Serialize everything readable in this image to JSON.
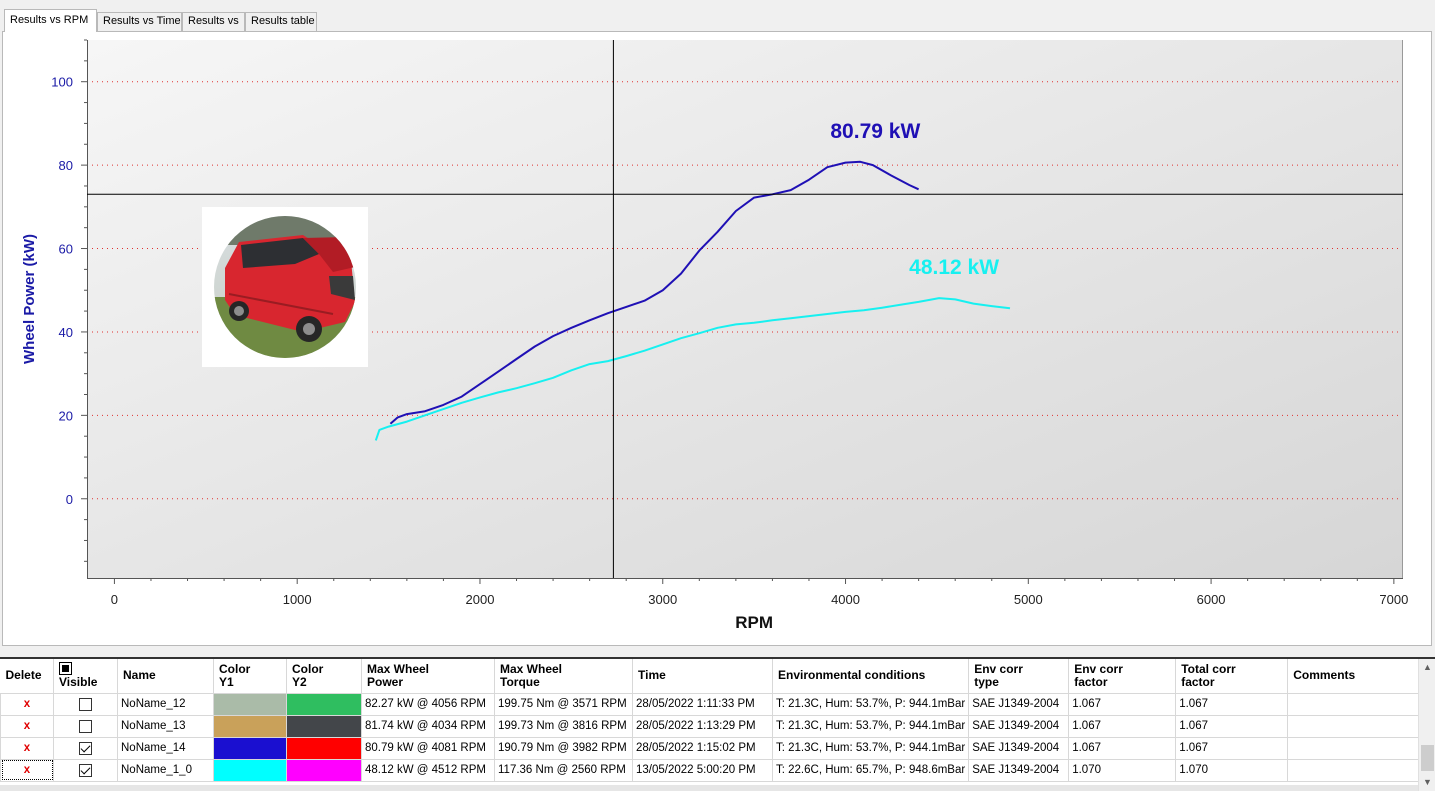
{
  "tabs": [
    "Results vs RPM",
    "Results vs Time",
    "Results vs",
    "Results table"
  ],
  "active_tab": 0,
  "chart_data": {
    "type": "line",
    "xlabel": "RPM",
    "ylabel": "Wheel Power (kW)",
    "xlim": [
      -150,
      7050
    ],
    "ylim": [
      -19,
      110
    ],
    "xticks": [
      0,
      1000,
      2000,
      3000,
      4000,
      5000,
      6000,
      7000
    ],
    "yticks": [
      0,
      20,
      40,
      60,
      80,
      100
    ],
    "grid": "horizontal dotted",
    "crosshair": {
      "x": 2730,
      "y": 73
    },
    "series": [
      {
        "name": "NoName_14",
        "color": "#1f10b5",
        "peak_label": "80.79 kW",
        "x": [
          1510,
          1550,
          1600,
          1700,
          1800,
          1900,
          2000,
          2100,
          2200,
          2300,
          2400,
          2500,
          2600,
          2700,
          2800,
          2900,
          3000,
          3100,
          3200,
          3300,
          3400,
          3500,
          3600,
          3700,
          3800,
          3900,
          4000,
          4081,
          4150,
          4250,
          4350,
          4400
        ],
        "y": [
          18.0,
          19.5,
          20.3,
          21.0,
          22.5,
          24.5,
          27.5,
          30.5,
          33.5,
          36.5,
          39.0,
          41.0,
          42.8,
          44.5,
          46.0,
          47.5,
          50.0,
          54.0,
          59.5,
          64.0,
          69.0,
          72.2,
          73.0,
          74.0,
          76.5,
          79.5,
          80.6,
          80.79,
          80.0,
          77.5,
          75.2,
          74.2
        ]
      },
      {
        "name": "NoName_1_0",
        "color": "#17f0f0",
        "peak_label": "48.12 kW",
        "x": [
          1430,
          1450,
          1500,
          1600,
          1700,
          1800,
          1900,
          2000,
          2100,
          2200,
          2300,
          2400,
          2500,
          2600,
          2700,
          2800,
          2900,
          3000,
          3100,
          3200,
          3300,
          3400,
          3500,
          3600,
          3700,
          3800,
          3900,
          4000,
          4100,
          4200,
          4300,
          4400,
          4512,
          4600,
          4700,
          4800,
          4900
        ],
        "y": [
          14.0,
          16.5,
          17.3,
          18.5,
          20.0,
          21.5,
          23.0,
          24.3,
          25.5,
          26.5,
          27.7,
          29.0,
          30.8,
          32.3,
          33.0,
          34.2,
          35.5,
          37.0,
          38.5,
          39.7,
          41.0,
          41.8,
          42.2,
          42.8,
          43.3,
          43.8,
          44.3,
          44.8,
          45.2,
          45.8,
          46.5,
          47.2,
          48.12,
          47.8,
          46.8,
          46.2,
          45.7
        ]
      }
    ]
  },
  "table": {
    "headers": [
      "Delete",
      "Visible",
      "Name",
      "Color\nY1",
      "Color\nY2",
      "Max Wheel\nPower",
      "Max Wheel\nTorque",
      "Time",
      "Environmental conditions",
      "Env corr\ntype",
      "Env corr\nfactor",
      "Total corr\nfactor",
      "Comments"
    ],
    "rows": [
      {
        "delete": "x",
        "visible": false,
        "name": "NoName_12",
        "color_y1": "#aabba8",
        "color_y2": "#2fbe60",
        "power": "82.27 kW @ 4056 RPM",
        "torque": "199.75 Nm @ 3571 RPM",
        "time": "28/05/2022 1:11:33 PM",
        "env": "T: 21.3C, Hum: 53.7%, P: 944.1mBar",
        "env_type": "SAE J1349-2004",
        "env_factor": "1.067",
        "total_factor": "1.067",
        "comments": ""
      },
      {
        "delete": "x",
        "visible": false,
        "name": "NoName_13",
        "color_y1": "#c9a15a",
        "color_y2": "#43464a",
        "power": "81.74 kW @ 4034 RPM",
        "torque": "199.73 Nm @ 3816 RPM",
        "time": "28/05/2022 1:13:29 PM",
        "env": "T: 21.3C, Hum: 53.7%, P: 944.1mBar",
        "env_type": "SAE J1349-2004",
        "env_factor": "1.067",
        "total_factor": "1.067",
        "comments": ""
      },
      {
        "delete": "x",
        "visible": true,
        "name": "NoName_14",
        "color_y1": "#1a0fd0",
        "color_y2": "#ff0000",
        "power": "80.79 kW @ 4081 RPM",
        "torque": "190.79 Nm @ 3982 RPM",
        "time": "28/05/2022 1:15:02 PM",
        "env": "T: 21.3C, Hum: 53.7%, P: 944.1mBar",
        "env_type": "SAE J1349-2004",
        "env_factor": "1.067",
        "total_factor": "1.067",
        "comments": ""
      },
      {
        "delete": "x",
        "visible": true,
        "name": "NoName_1_0",
        "color_y1": "#00ffff",
        "color_y2": "#ff00ff",
        "power": "48.12 kW @ 4512 RPM",
        "torque": "117.36 Nm @ 2560 RPM",
        "time": "13/05/2022 5:00:20 PM",
        "env": "T: 22.6C, Hum: 65.7%, P: 948.6mBar",
        "env_type": "SAE J1349-2004",
        "env_factor": "1.070",
        "total_factor": "1.070",
        "comments": ""
      }
    ]
  }
}
